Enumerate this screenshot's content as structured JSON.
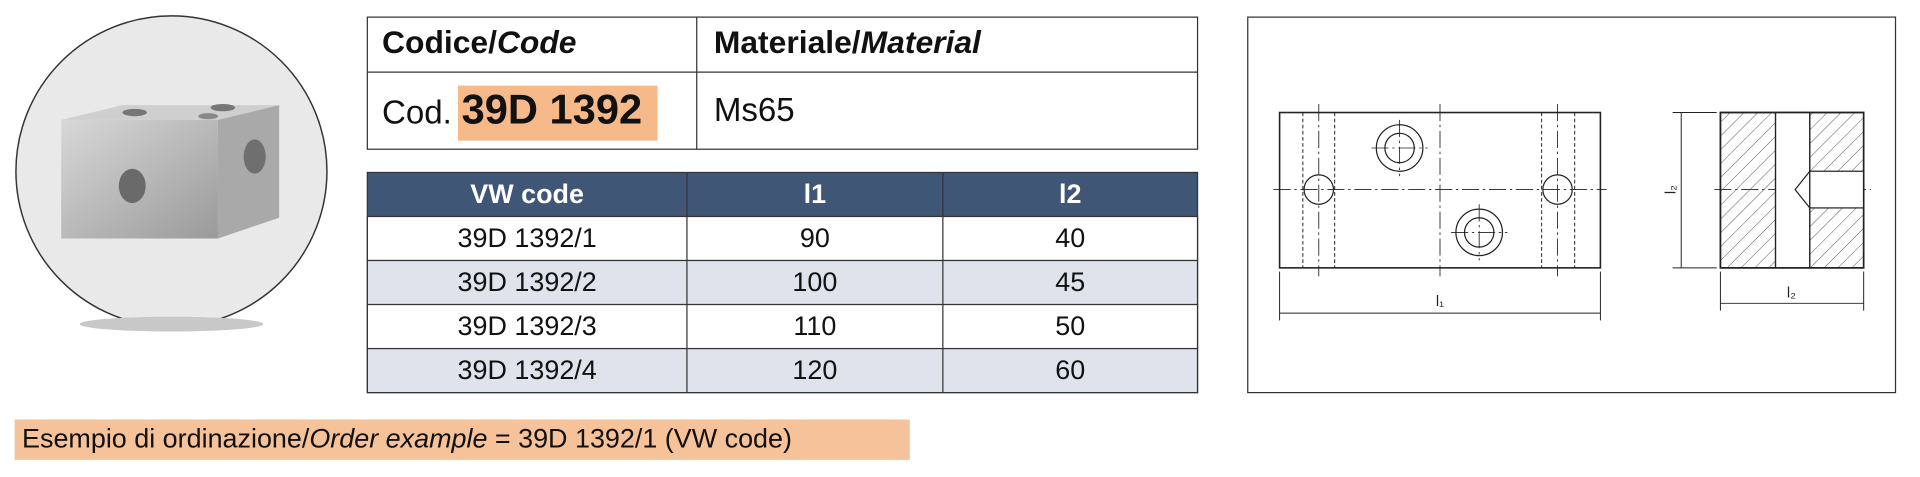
{
  "header": {
    "code_heading": "Codice/",
    "code_heading_italic": "Code",
    "material_heading": "Materiale/",
    "material_heading_italic": "Material",
    "code_prefix": "Cod.",
    "code": "39D 1392",
    "material": "Ms65"
  },
  "table": {
    "columns": [
      "VW code",
      "l1",
      "l2"
    ],
    "rows": [
      [
        "39D 1392/1",
        "90",
        "40"
      ],
      [
        "39D 1392/2",
        "100",
        "45"
      ],
      [
        "39D 1392/3",
        "110",
        "50"
      ],
      [
        "39D 1392/4",
        "120",
        "60"
      ]
    ]
  },
  "drawing": {
    "length_label": "l₁",
    "height_label": "l₂",
    "width_label": "l₂"
  },
  "footer": {
    "prefix": "Esempio di ordinazione/",
    "italic": "Order example",
    "suffix": " = 39D 1392/1 (VW code)"
  }
}
